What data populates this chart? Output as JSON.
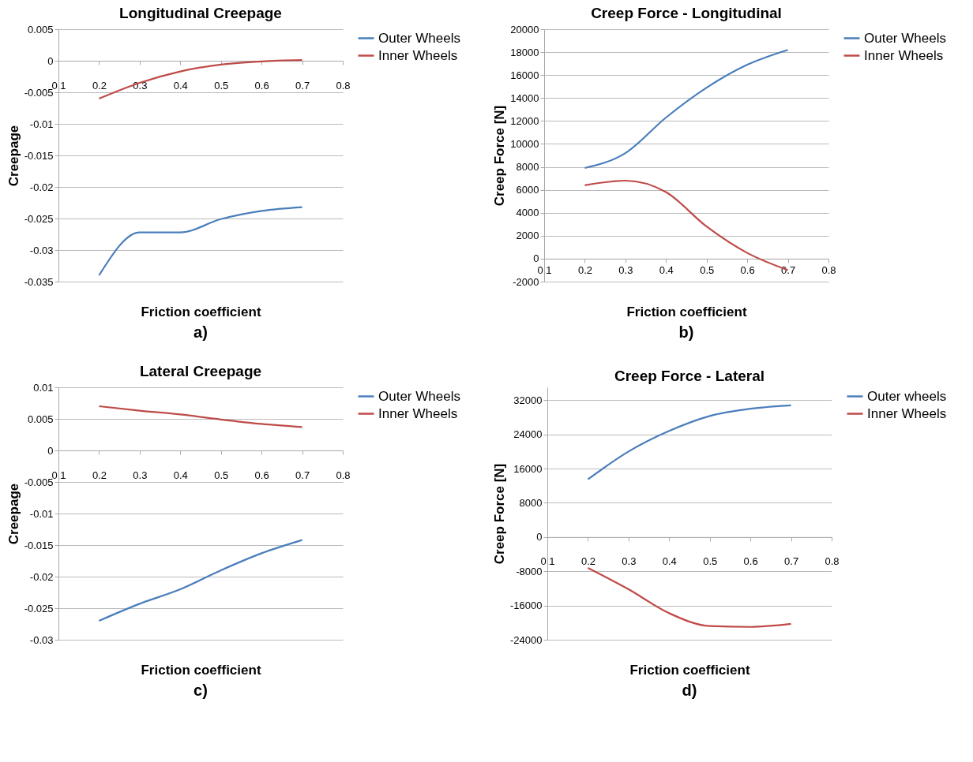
{
  "chart_data": [
    {
      "type": "line",
      "title": "Longitudinal Creepage",
      "xlabel": "Friction coefficient",
      "ylabel": "Creepage",
      "annotations": [
        "a)"
      ],
      "x": [
        0.2,
        0.3,
        0.4,
        0.5,
        0.6,
        0.7
      ],
      "xlim": [
        0.1,
        0.8
      ],
      "xticks": [
        0.1,
        0.2,
        0.3,
        0.4,
        0.5,
        0.6,
        0.7,
        0.8
      ],
      "ylim": [
        -0.035,
        0.005
      ],
      "yticks": [
        -0.035,
        -0.03,
        -0.025,
        -0.02,
        -0.015,
        -0.01,
        -0.005,
        0,
        0.005
      ],
      "grid": "y",
      "legend": "right",
      "line_style": "solid",
      "series": [
        {
          "name": "Outer Wheels",
          "color": "#4a7ebb",
          "values": [
            -0.034,
            -0.0272,
            -0.0272,
            -0.0251,
            -0.0238,
            -0.0232
          ]
        },
        {
          "name": "Inner Wheels",
          "color": "#be4b48",
          "values": [
            -0.006,
            -0.0035,
            -0.0017,
            -0.0006,
            -0.0001,
            0.0001
          ]
        }
      ]
    },
    {
      "type": "line",
      "title": "Creep Force - Longitudinal",
      "xlabel": "Friction coefficient",
      "ylabel": "Creep Force [N]",
      "annotations": [
        "b)"
      ],
      "x": [
        0.2,
        0.3,
        0.4,
        0.5,
        0.6,
        0.7
      ],
      "xlim": [
        0.1,
        0.8
      ],
      "xticks": [
        0.1,
        0.2,
        0.3,
        0.4,
        0.5,
        0.6,
        0.7,
        0.8
      ],
      "ylim": [
        -2000,
        20000
      ],
      "yticks": [
        -2000,
        0,
        2000,
        4000,
        6000,
        8000,
        10000,
        12000,
        14000,
        16000,
        18000,
        20000
      ],
      "grid": "y",
      "legend": "right",
      "line_style": "solid",
      "series": [
        {
          "name": "Outer Wheels",
          "color": "#4a7ebb",
          "values": [
            7900,
            9200,
            12300,
            14900,
            16900,
            18200
          ]
        },
        {
          "name": "Inner Wheels",
          "color": "#be4b48",
          "values": [
            6400,
            6800,
            5800,
            2800,
            500,
            -1000
          ]
        }
      ]
    },
    {
      "type": "line",
      "title": "Lateral Creepage",
      "xlabel": "Friction coefficient",
      "ylabel": "Creepage",
      "annotations": [
        "c)"
      ],
      "x": [
        0.2,
        0.3,
        0.4,
        0.5,
        0.6,
        0.7
      ],
      "xlim": [
        0.1,
        0.8
      ],
      "xticks": [
        0.1,
        0.2,
        0.3,
        0.4,
        0.5,
        0.6,
        0.7,
        0.8
      ],
      "ylim": [
        -0.03,
        0.01
      ],
      "yticks": [
        -0.03,
        -0.025,
        -0.02,
        -0.015,
        -0.01,
        -0.005,
        0,
        0.005,
        0.01
      ],
      "grid": "y",
      "legend": "right",
      "line_style": "solid",
      "series": [
        {
          "name": "Outer Wheels",
          "color": "#4a7ebb",
          "values": [
            -0.027,
            -0.0243,
            -0.022,
            -0.019,
            -0.0163,
            -0.0142
          ]
        },
        {
          "name": "Inner Wheels",
          "color": "#be4b48",
          "values": [
            0.007,
            0.0063,
            0.0057,
            0.0049,
            0.0042,
            0.0037
          ]
        }
      ]
    },
    {
      "type": "line",
      "title": "Creep Force - Lateral",
      "xlabel": "Friction coefficient",
      "ylabel": "Creep Force [N]",
      "annotations": [
        "d)"
      ],
      "x": [
        0.2,
        0.3,
        0.4,
        0.5,
        0.6,
        0.7
      ],
      "xlim": [
        0.1,
        0.8
      ],
      "xticks": [
        0.1,
        0.2,
        0.3,
        0.4,
        0.5,
        0.6,
        0.7,
        0.8
      ],
      "ylim": [
        -24000,
        35000
      ],
      "yticks": [
        -24000,
        -16000,
        -8000,
        0,
        8000,
        16000,
        24000,
        32000
      ],
      "grid": "y",
      "legend": "right",
      "line_style": "solid",
      "series": [
        {
          "name": "Outer wheels",
          "color": "#4a7ebb",
          "values": [
            13500,
            20000,
            24800,
            28300,
            30000,
            30800
          ]
        },
        {
          "name": "Inner Wheels",
          "color": "#be4b48",
          "values": [
            -7200,
            -12200,
            -17800,
            -20800,
            -21000,
            -20300
          ]
        }
      ]
    }
  ]
}
